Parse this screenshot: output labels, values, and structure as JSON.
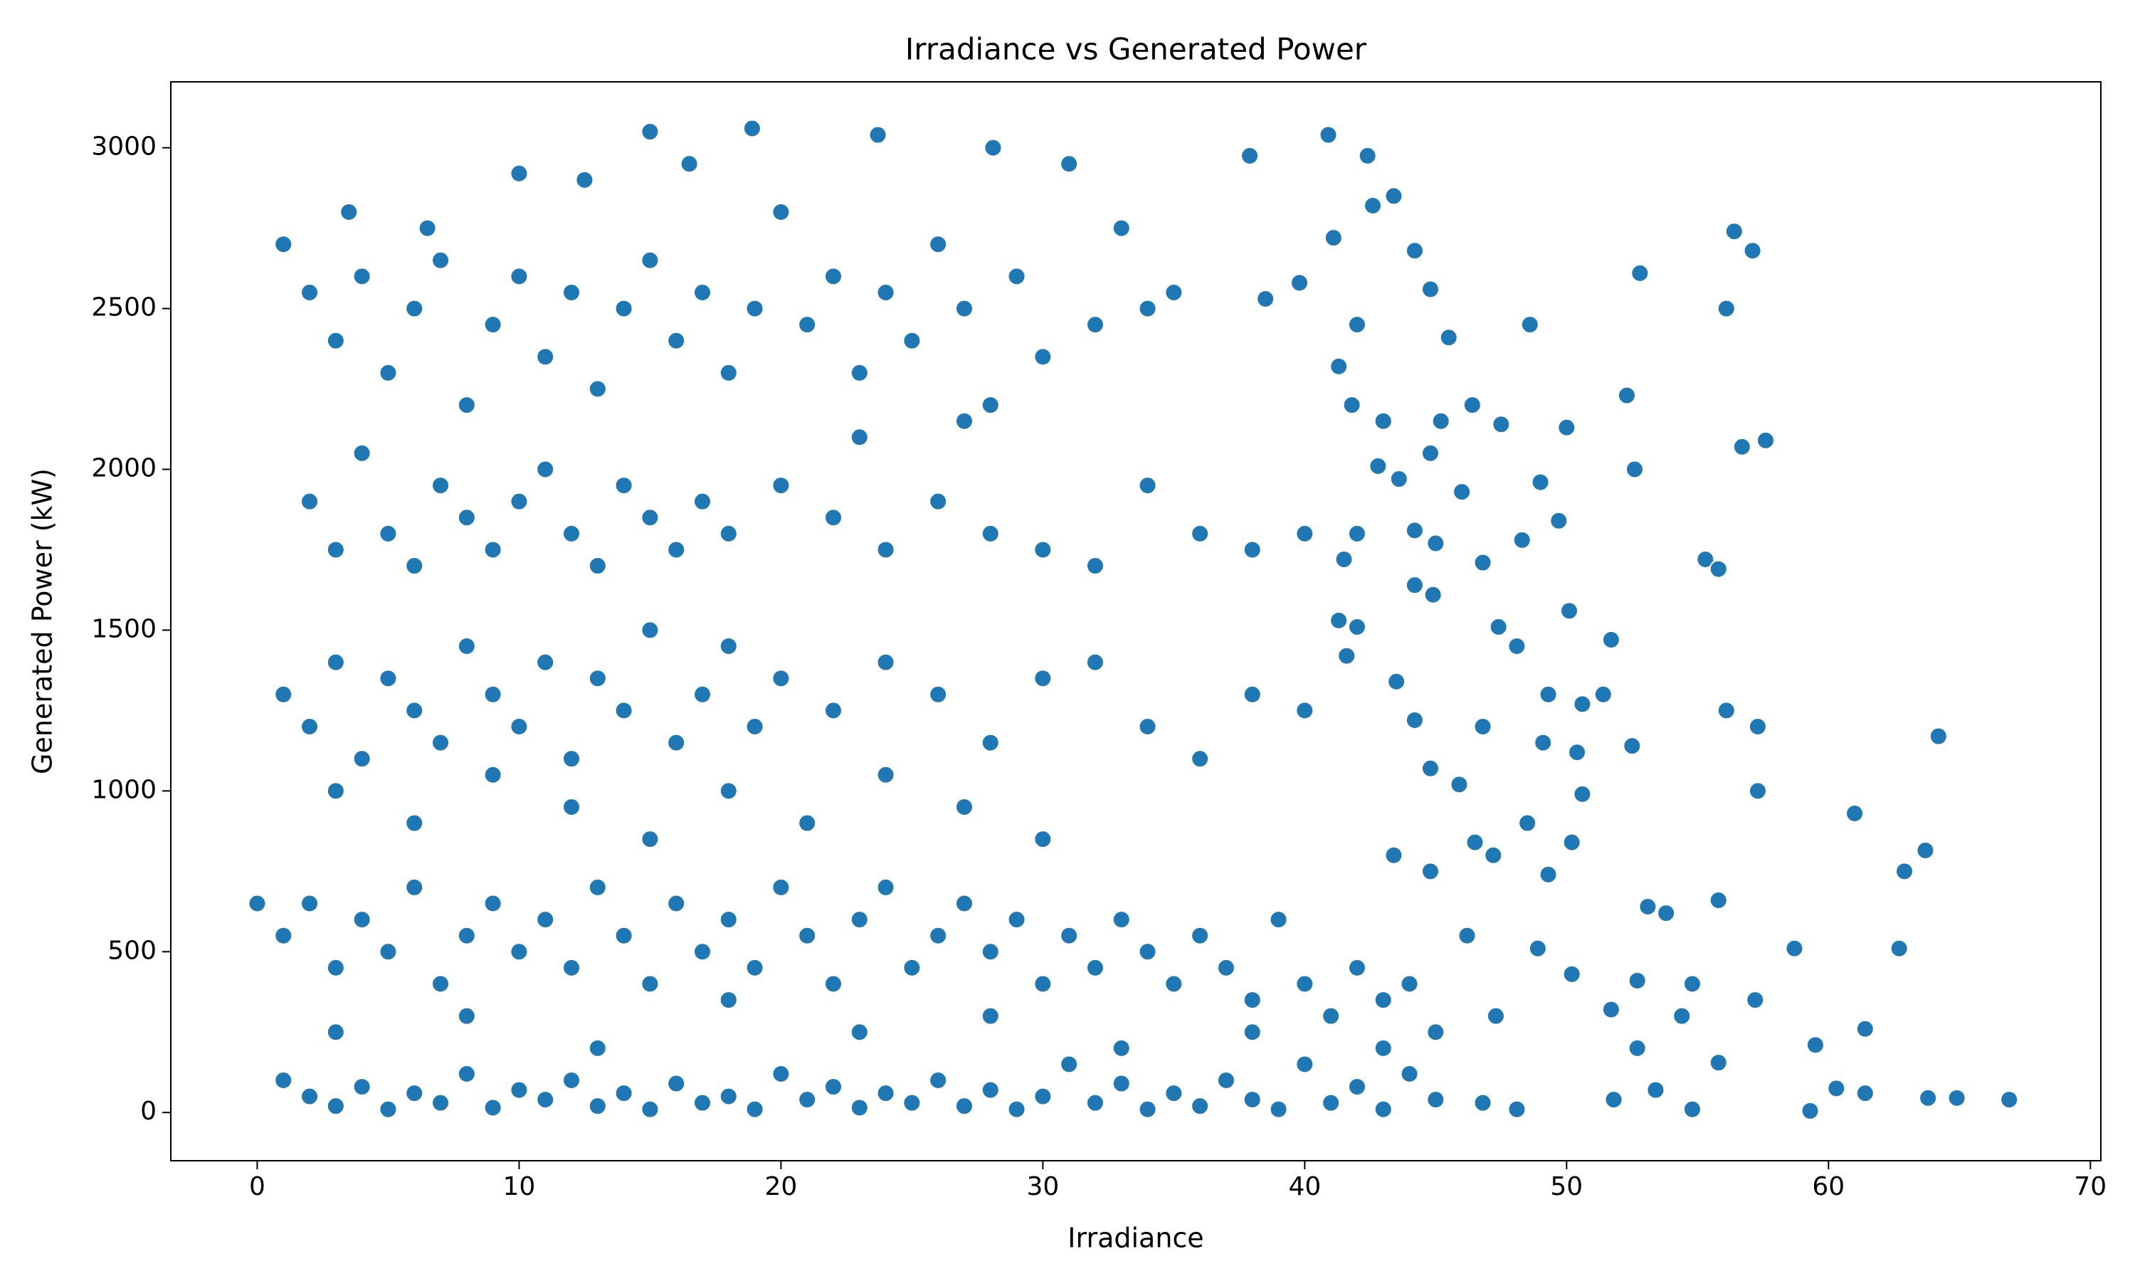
{
  "chart_data": {
    "type": "scatter",
    "title": "Irradiance vs Generated Power",
    "xlabel": "Irradiance",
    "ylabel": "Generated Power (kW)",
    "color": "#1f77b4",
    "xlim": [
      -3.3,
      70.4
    ],
    "ylim": [
      -150,
      3205
    ],
    "xticks": [
      0,
      10,
      20,
      30,
      40,
      50,
      60,
      70
    ],
    "yticks": [
      0,
      500,
      1000,
      1500,
      2000,
      2500,
      3000
    ],
    "x": [
      1,
      2,
      3,
      4,
      5,
      6,
      7,
      8,
      9,
      10,
      11,
      12,
      13,
      14,
      15,
      16,
      17,
      18,
      19,
      20,
      21,
      22,
      23,
      24,
      25,
      26,
      27,
      28,
      29,
      30,
      31,
      32,
      33,
      34,
      35,
      3.5,
      6.5,
      10,
      12.5,
      16.5,
      2,
      3,
      4,
      5,
      6,
      7,
      8,
      9,
      10,
      11,
      12,
      13,
      14,
      15,
      16,
      17,
      18,
      20,
      22,
      24,
      26,
      28,
      30,
      32,
      34,
      36,
      38,
      40,
      23,
      27,
      1,
      2,
      3,
      4,
      5,
      6,
      7,
      8,
      9,
      10,
      11,
      12,
      13,
      14,
      15,
      16,
      17,
      18,
      19,
      20,
      22,
      24,
      26,
      28,
      30,
      32,
      34,
      36,
      38,
      40,
      3,
      6,
      9,
      12,
      15,
      18,
      21,
      24,
      27,
      30,
      1,
      2,
      3,
      4,
      5,
      6,
      7,
      8,
      9,
      10,
      11,
      12,
      13,
      14,
      15,
      16,
      17,
      18,
      19,
      20,
      21,
      22,
      23,
      24,
      25,
      26,
      27,
      28,
      29,
      30,
      31,
      32,
      33,
      34,
      35,
      36,
      37,
      38,
      39,
      40,
      41,
      42,
      43,
      44,
      45,
      1,
      2,
      3,
      4,
      5,
      6,
      7,
      8,
      9,
      10,
      11,
      12,
      13,
      14,
      15,
      16,
      17,
      18,
      19,
      20,
      21,
      22,
      23,
      24,
      25,
      26,
      27,
      28,
      29,
      30,
      31,
      32,
      33,
      34,
      35,
      36,
      37,
      38,
      39,
      40,
      41,
      42,
      43,
      44,
      45,
      3,
      8,
      13,
      18,
      23,
      28,
      33,
      38,
      43,
      0,
      15,
      18.9,
      23.7,
      28.1,
      40.9,
      42.4,
      37.9,
      56.4,
      57.1,
      52.8,
      56.1,
      57.6,
      56.7,
      55.3,
      55.8,
      64.2,
      61,
      63.7,
      62.9,
      62.7,
      58.7,
      61.4,
      59.5,
      60.3,
      61.4,
      63.8,
      64.9,
      66.9,
      59.3,
      57.2,
      56.1,
      57.3,
      57.3,
      55.8,
      55.8,
      54.8,
      52.3,
      52.6,
      50,
      49.7,
      50.1,
      51.7,
      51.4,
      50.6,
      52.5,
      50.4,
      50.6,
      50.2,
      53.1,
      53.8,
      52.7,
      54.8,
      54.4,
      50.2,
      51.7,
      52.7,
      53.4,
      51.8,
      48.6,
      48.3,
      49,
      47.5,
      46.4,
      46,
      46.8,
      47.4,
      48.1,
      49.3,
      49.1,
      46.8,
      48.5,
      47.2,
      49.3,
      47.3,
      48.9,
      46.5,
      45.9,
      46.2,
      46.8,
      48.1,
      41.1,
      41.3,
      42,
      43.4,
      44.2,
      44.8,
      45.5,
      42.6,
      39.8,
      38.5,
      41.8,
      43,
      44.8,
      45.2,
      42.8,
      43.6,
      41.5,
      42,
      44.2,
      45,
      44.2,
      44.9,
      41.3,
      41.6,
      43.5,
      44.2,
      44.8,
      43.4,
      44.8,
      42
    ],
    "values": [
      2700,
      2550,
      2400,
      2600,
      2300,
      2500,
      2650,
      2200,
      2450,
      2600,
      2350,
      2550,
      2250,
      2500,
      2650,
      2400,
      2550,
      2300,
      2500,
      2800,
      2450,
      2600,
      2300,
      2550,
      2400,
      2700,
      2500,
      2200,
      2600,
      2350,
      2950,
      2450,
      2750,
      2500,
      2550,
      2800,
      2750,
      2920,
      2900,
      2950,
      1900,
      1750,
      2050,
      1800,
      1700,
      1950,
      1850,
      1750,
      1900,
      2000,
      1800,
      1700,
      1950,
      1850,
      1750,
      1900,
      1800,
      1950,
      1850,
      1750,
      1900,
      1800,
      1750,
      1700,
      1950,
      1800,
      1750,
      1800,
      2100,
      2150,
      1300,
      1200,
      1400,
      1100,
      1350,
      1250,
      1150,
      1450,
      1300,
      1200,
      1400,
      1100,
      1350,
      1250,
      1500,
      1150,
      1300,
      1450,
      1200,
      1350,
      1250,
      1400,
      1300,
      1150,
      1350,
      1400,
      1200,
      1100,
      1300,
      1250,
      1000,
      900,
      1050,
      950,
      850,
      1000,
      900,
      1050,
      950,
      850,
      550,
      650,
      450,
      600,
      500,
      700,
      400,
      550,
      650,
      500,
      600,
      450,
      700,
      550,
      400,
      650,
      500,
      600,
      450,
      700,
      550,
      400,
      600,
      700,
      450,
      550,
      650,
      500,
      600,
      400,
      550,
      450,
      600,
      500,
      400,
      550,
      450,
      350,
      600,
      400,
      300,
      450,
      350,
      400,
      250,
      100,
      50,
      20,
      80,
      10,
      60,
      30,
      120,
      15,
      70,
      40,
      100,
      20,
      60,
      10,
      90,
      30,
      50,
      10,
      120,
      40,
      80,
      15,
      60,
      30,
      100,
      20,
      70,
      10,
      50,
      150,
      30,
      90,
      10,
      60,
      20,
      100,
      40,
      10,
      150,
      30,
      80,
      10,
      120,
      40,
      250,
      300,
      200,
      350,
      250,
      300,
      200,
      250,
      200,
      650,
      3050,
      3060,
      3040,
      3000,
      3040,
      2975,
      2975,
      2740,
      2680,
      2610,
      2500,
      2090,
      2070,
      1720,
      1690,
      1170,
      930,
      815,
      750,
      510,
      510,
      260,
      210,
      75,
      60,
      45,
      45,
      40,
      5,
      350,
      1250,
      1200,
      1000,
      660,
      155,
      10,
      2230,
      2000,
      2130,
      1840,
      1560,
      1470,
      1300,
      1270,
      1140,
      1120,
      990,
      840,
      640,
      620,
      410,
      400,
      300,
      430,
      320,
      200,
      70,
      40,
      2450,
      1780,
      1960,
      2140,
      2200,
      1930,
      1710,
      1510,
      1450,
      1300,
      1150,
      1200,
      900,
      800,
      740,
      300,
      510,
      840,
      1020,
      550,
      30,
      10,
      2720,
      2320,
      2450,
      2850,
      2680,
      2560,
      2410,
      2820,
      2580,
      2530,
      2200,
      2150,
      2050,
      2150,
      2010,
      1970,
      1720,
      1800,
      1810,
      1770,
      1640,
      1610,
      1530,
      1420,
      1340,
      1220,
      1070,
      800,
      750,
      1510
    ]
  }
}
